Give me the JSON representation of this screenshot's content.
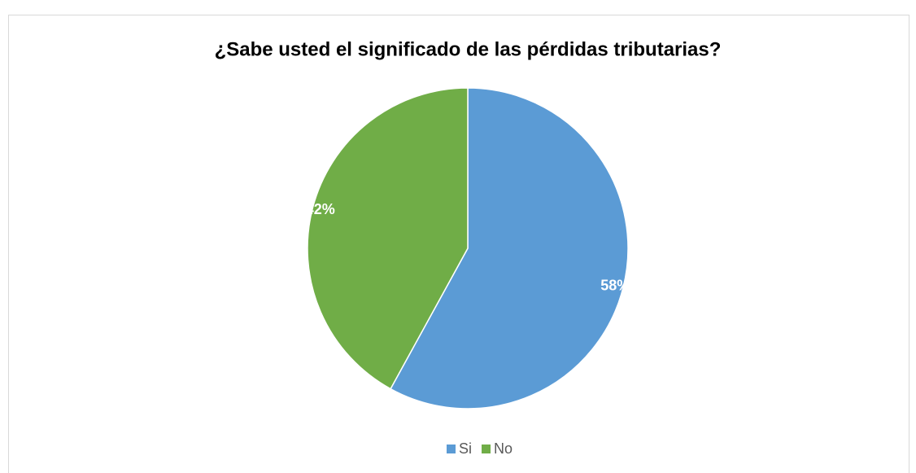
{
  "chart_data": {
    "type": "pie",
    "title": "¿Sabe usted el significado de las pérdidas tributarias?",
    "categories": [
      "Si",
      "No"
    ],
    "values": [
      58,
      42
    ],
    "value_labels": [
      "58%",
      "42%"
    ],
    "colors": [
      "#5b9bd5",
      "#70ad47"
    ]
  }
}
